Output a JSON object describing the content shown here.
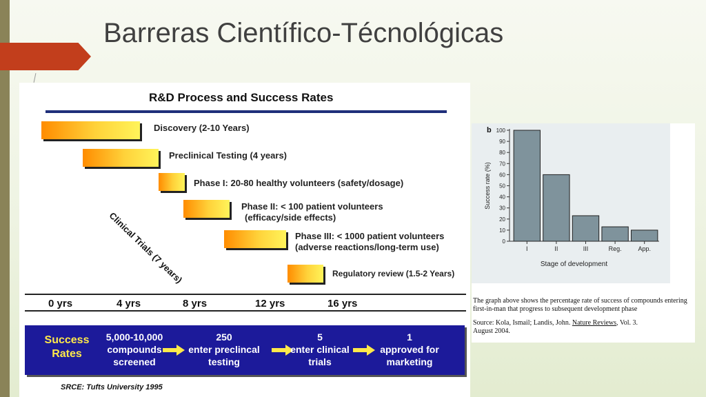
{
  "slide": {
    "title": "Barreras Científico-Técnológicas"
  },
  "rd": {
    "heading": "R&D Process and Success Rates",
    "phases": [
      {
        "label": "Discovery (2-10 Years)"
      },
      {
        "label": "Preclinical Testing (4 years)"
      },
      {
        "label": "Phase I: 20-80 healthy volunteers (safety/dosage)"
      },
      {
        "label": "Phase II: < 100 patient volunteers",
        "label2": "(efficacy/side effects)"
      },
      {
        "label": "Phase III: < 1000 patient volunteers",
        "label2": "(adverse reactions/long-term use)"
      },
      {
        "label": "Regulatory review (1.5-2 Years)"
      }
    ],
    "clinical_trials_label": "Clinical Trials (7 years)",
    "timeline": [
      "0 yrs",
      "4 yrs",
      "8 yrs",
      "12 yrs",
      "16 yrs"
    ],
    "success": {
      "title_line1": "Success",
      "title_line2": "Rates",
      "items": [
        {
          "l1": "5,000-10,000",
          "l2": "compounds",
          "l3": "screened"
        },
        {
          "l1": "250",
          "l2": "enter preclincal",
          "l3": "testing"
        },
        {
          "l1": "5",
          "l2": "enter clinical",
          "l3": "trials"
        },
        {
          "l1": "1",
          "l2": "approved for",
          "l3": "marketing"
        }
      ]
    },
    "source": "SRCE: Tufts University 1995"
  },
  "chart_data": {
    "type": "bar",
    "panel_letter": "b",
    "categories": [
      "I",
      "II",
      "III",
      "Reg.",
      "App."
    ],
    "values": [
      100,
      60,
      23,
      13,
      10
    ],
    "ylabel": "Success rate (%)",
    "xlabel": "Stage of development",
    "ylim": [
      0,
      100
    ],
    "yticks": [
      0,
      10,
      20,
      30,
      40,
      50,
      60,
      70,
      80,
      90,
      100
    ],
    "bar_color": "#7f939c",
    "grid": false
  },
  "caption": {
    "text": "The graph above shows the percentage rate of success of compounds entering first-in-man that progress to subsequent development phase",
    "source_prefix": "Source:  Kola, Ismail; Landis, John.  ",
    "source_journal": "Nature Reviews",
    "source_suffix": ", Vol. 3.",
    "source_date": "August 2004."
  }
}
